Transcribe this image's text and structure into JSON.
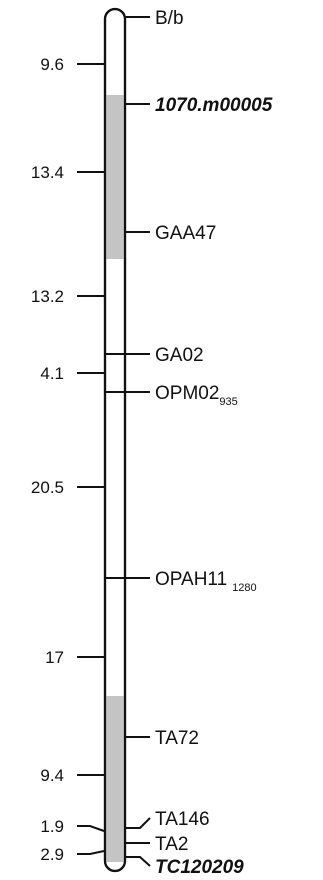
{
  "distances": [
    "9.6",
    "13.4",
    "13.2",
    "4.1",
    "20.5",
    "17",
    "9.4",
    "1.9",
    "2.9"
  ],
  "markers": [
    {
      "name": "B/b",
      "subscript": "",
      "bold_italic": false
    },
    {
      "name": "1070.m00005",
      "subscript": "",
      "bold_italic": true
    },
    {
      "name": "GAA47",
      "subscript": "",
      "bold_italic": false
    },
    {
      "name": "GA02",
      "subscript": "",
      "bold_italic": false
    },
    {
      "name": "OPM02",
      "subscript": "935",
      "bold_italic": false
    },
    {
      "name": "OPAH11",
      "subscript": "1280",
      "bold_italic": false
    },
    {
      "name": "TA72",
      "subscript": "",
      "bold_italic": false
    },
    {
      "name": "TA146",
      "subscript": "",
      "bold_italic": false
    },
    {
      "name": "TA2",
      "subscript": "",
      "bold_italic": false
    },
    {
      "name": "TC120209",
      "subscript": "",
      "bold_italic": true
    }
  ],
  "colors": {
    "line": "#111111",
    "shaded_region": "#c4c4c4",
    "chromosome_fill": "#ffffff"
  }
}
